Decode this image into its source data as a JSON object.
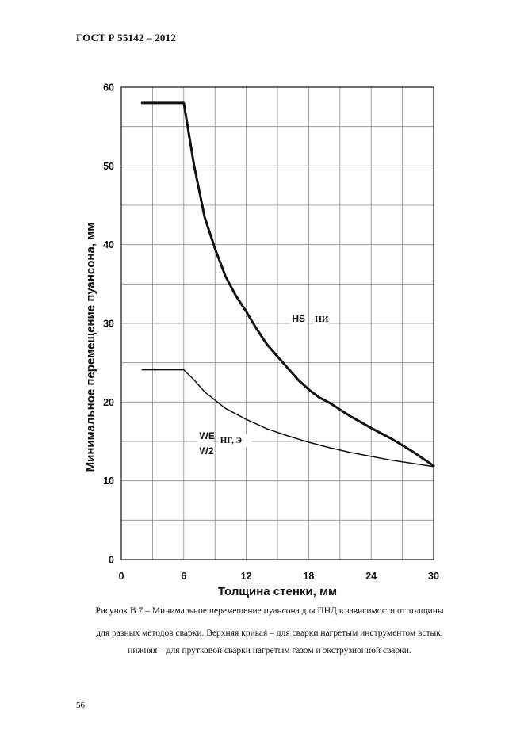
{
  "header": {
    "doc_id": "ГОСТ Р  55142 – 2012"
  },
  "chart_data": {
    "type": "line",
    "title": "",
    "xlabel": "Толщина стенки, мм",
    "ylabel": "Минимальное перемещение пуансона, мм",
    "xlim": [
      0,
      30
    ],
    "ylim": [
      0,
      60
    ],
    "xticks": [
      0,
      6,
      12,
      18,
      24,
      30
    ],
    "yticks": [
      0,
      10,
      20,
      30,
      40,
      50,
      60
    ],
    "grid": true,
    "series": [
      {
        "name": "HS",
        "label_extra": "НИ",
        "stroke_width": "thick",
        "points": [
          [
            2,
            58
          ],
          [
            6,
            58
          ],
          [
            7,
            50
          ],
          [
            8,
            43.5
          ],
          [
            9,
            39.5
          ],
          [
            10,
            36
          ],
          [
            11,
            33.5
          ],
          [
            12,
            31.5
          ],
          [
            13,
            29.3
          ],
          [
            14,
            27.3
          ],
          [
            15,
            25.8
          ],
          [
            16,
            24.3
          ],
          [
            17,
            22.8
          ],
          [
            18,
            21.6
          ],
          [
            19,
            20.6
          ],
          [
            20,
            19.9
          ],
          [
            22,
            18.2
          ],
          [
            24,
            16.7
          ],
          [
            26,
            15.3
          ],
          [
            28,
            13.7
          ],
          [
            30,
            11.9
          ]
        ]
      },
      {
        "name": "WE W2",
        "label_extra": "НГ, Э",
        "stroke_width": "thin",
        "points": [
          [
            2,
            24.1
          ],
          [
            6,
            24.1
          ],
          [
            7,
            22.8
          ],
          [
            8,
            21.3
          ],
          [
            10,
            19.2
          ],
          [
            12,
            17.8
          ],
          [
            14,
            16.6
          ],
          [
            16,
            15.7
          ],
          [
            18,
            14.9
          ],
          [
            20,
            14.2
          ],
          [
            22,
            13.6
          ],
          [
            24,
            13.1
          ],
          [
            26,
            12.6
          ],
          [
            28,
            12.2
          ],
          [
            30,
            11.8
          ]
        ]
      }
    ],
    "annotations": [
      {
        "text": "HS",
        "x": 16.4,
        "y": 30.2,
        "series": 0
      },
      {
        "text": "НИ",
        "x": 18.6,
        "y": 30.2,
        "series": 0
      },
      {
        "text": "WE",
        "x": 7.5,
        "y": 15.3,
        "series": 1
      },
      {
        "text": "W2",
        "x": 7.5,
        "y": 13.4,
        "series": 1
      },
      {
        "text": "НГ, Э",
        "x": 9.5,
        "y": 14.8,
        "series": 1
      }
    ]
  },
  "caption": {
    "line1": "Рисунок В 7 – Минимальное перемещение пуансона  для ПНД в зависимости от толщины",
    "line2": "для разных методов сварки. Верхняя кривая – для сварки нагретым инструментом встык,",
    "line3": "нижняя – для прутковой сварки нагретым газом и экструзионной сварки."
  },
  "page_number": "56"
}
